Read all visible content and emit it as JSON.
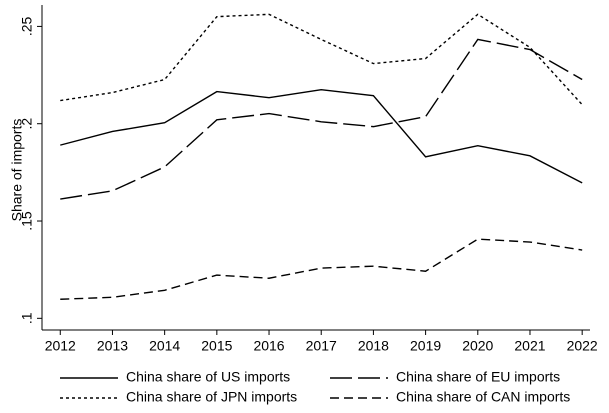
{
  "chart_data": {
    "type": "line",
    "y_label": "Share of imports",
    "x": [
      2012,
      2013,
      2014,
      2015,
      2016,
      2017,
      2018,
      2019,
      2020,
      2021,
      2022
    ],
    "xlim": [
      2011.65,
      2022.15
    ],
    "xticks": [
      2012,
      2013,
      2014,
      2015,
      2016,
      2017,
      2018,
      2019,
      2020,
      2021,
      2022
    ],
    "ylim": [
      0.094,
      0.261
    ],
    "yticks": [
      {
        "value": 0.1,
        "label": ".1"
      },
      {
        "value": 0.15,
        "label": ".15"
      },
      {
        "value": 0.2,
        "label": ".2"
      },
      {
        "value": 0.25,
        "label": ".25"
      }
    ],
    "grid": false,
    "legend": "bottom",
    "series": [
      {
        "name": "China share of US imports",
        "color": "#000000",
        "dash": "solid",
        "values": [
          0.189,
          0.196,
          0.2005,
          0.2165,
          0.2134,
          0.2175,
          0.2144,
          0.183,
          0.1887,
          0.1835,
          0.1696
        ]
      },
      {
        "name": "China share of EU imports",
        "color": "#000000",
        "dash": "long-dash",
        "values": [
          0.1613,
          0.1655,
          0.1778,
          0.202,
          0.2052,
          0.201,
          0.1985,
          0.2036,
          0.2433,
          0.2381,
          0.2227
        ]
      },
      {
        "name": "China share of JPN imports",
        "color": "#000000",
        "dash": "dot",
        "values": [
          0.2119,
          0.216,
          0.2227,
          0.255,
          0.2562,
          0.2433,
          0.2309,
          0.2335,
          0.2562,
          0.2392,
          0.2098
        ]
      },
      {
        "name": "China share of CAN imports",
        "color": "#000000",
        "dash": "dash",
        "values": [
          0.1098,
          0.1108,
          0.1144,
          0.1222,
          0.1206,
          0.1258,
          0.1268,
          0.1242,
          0.1407,
          0.1392,
          0.1351
        ]
      }
    ]
  }
}
